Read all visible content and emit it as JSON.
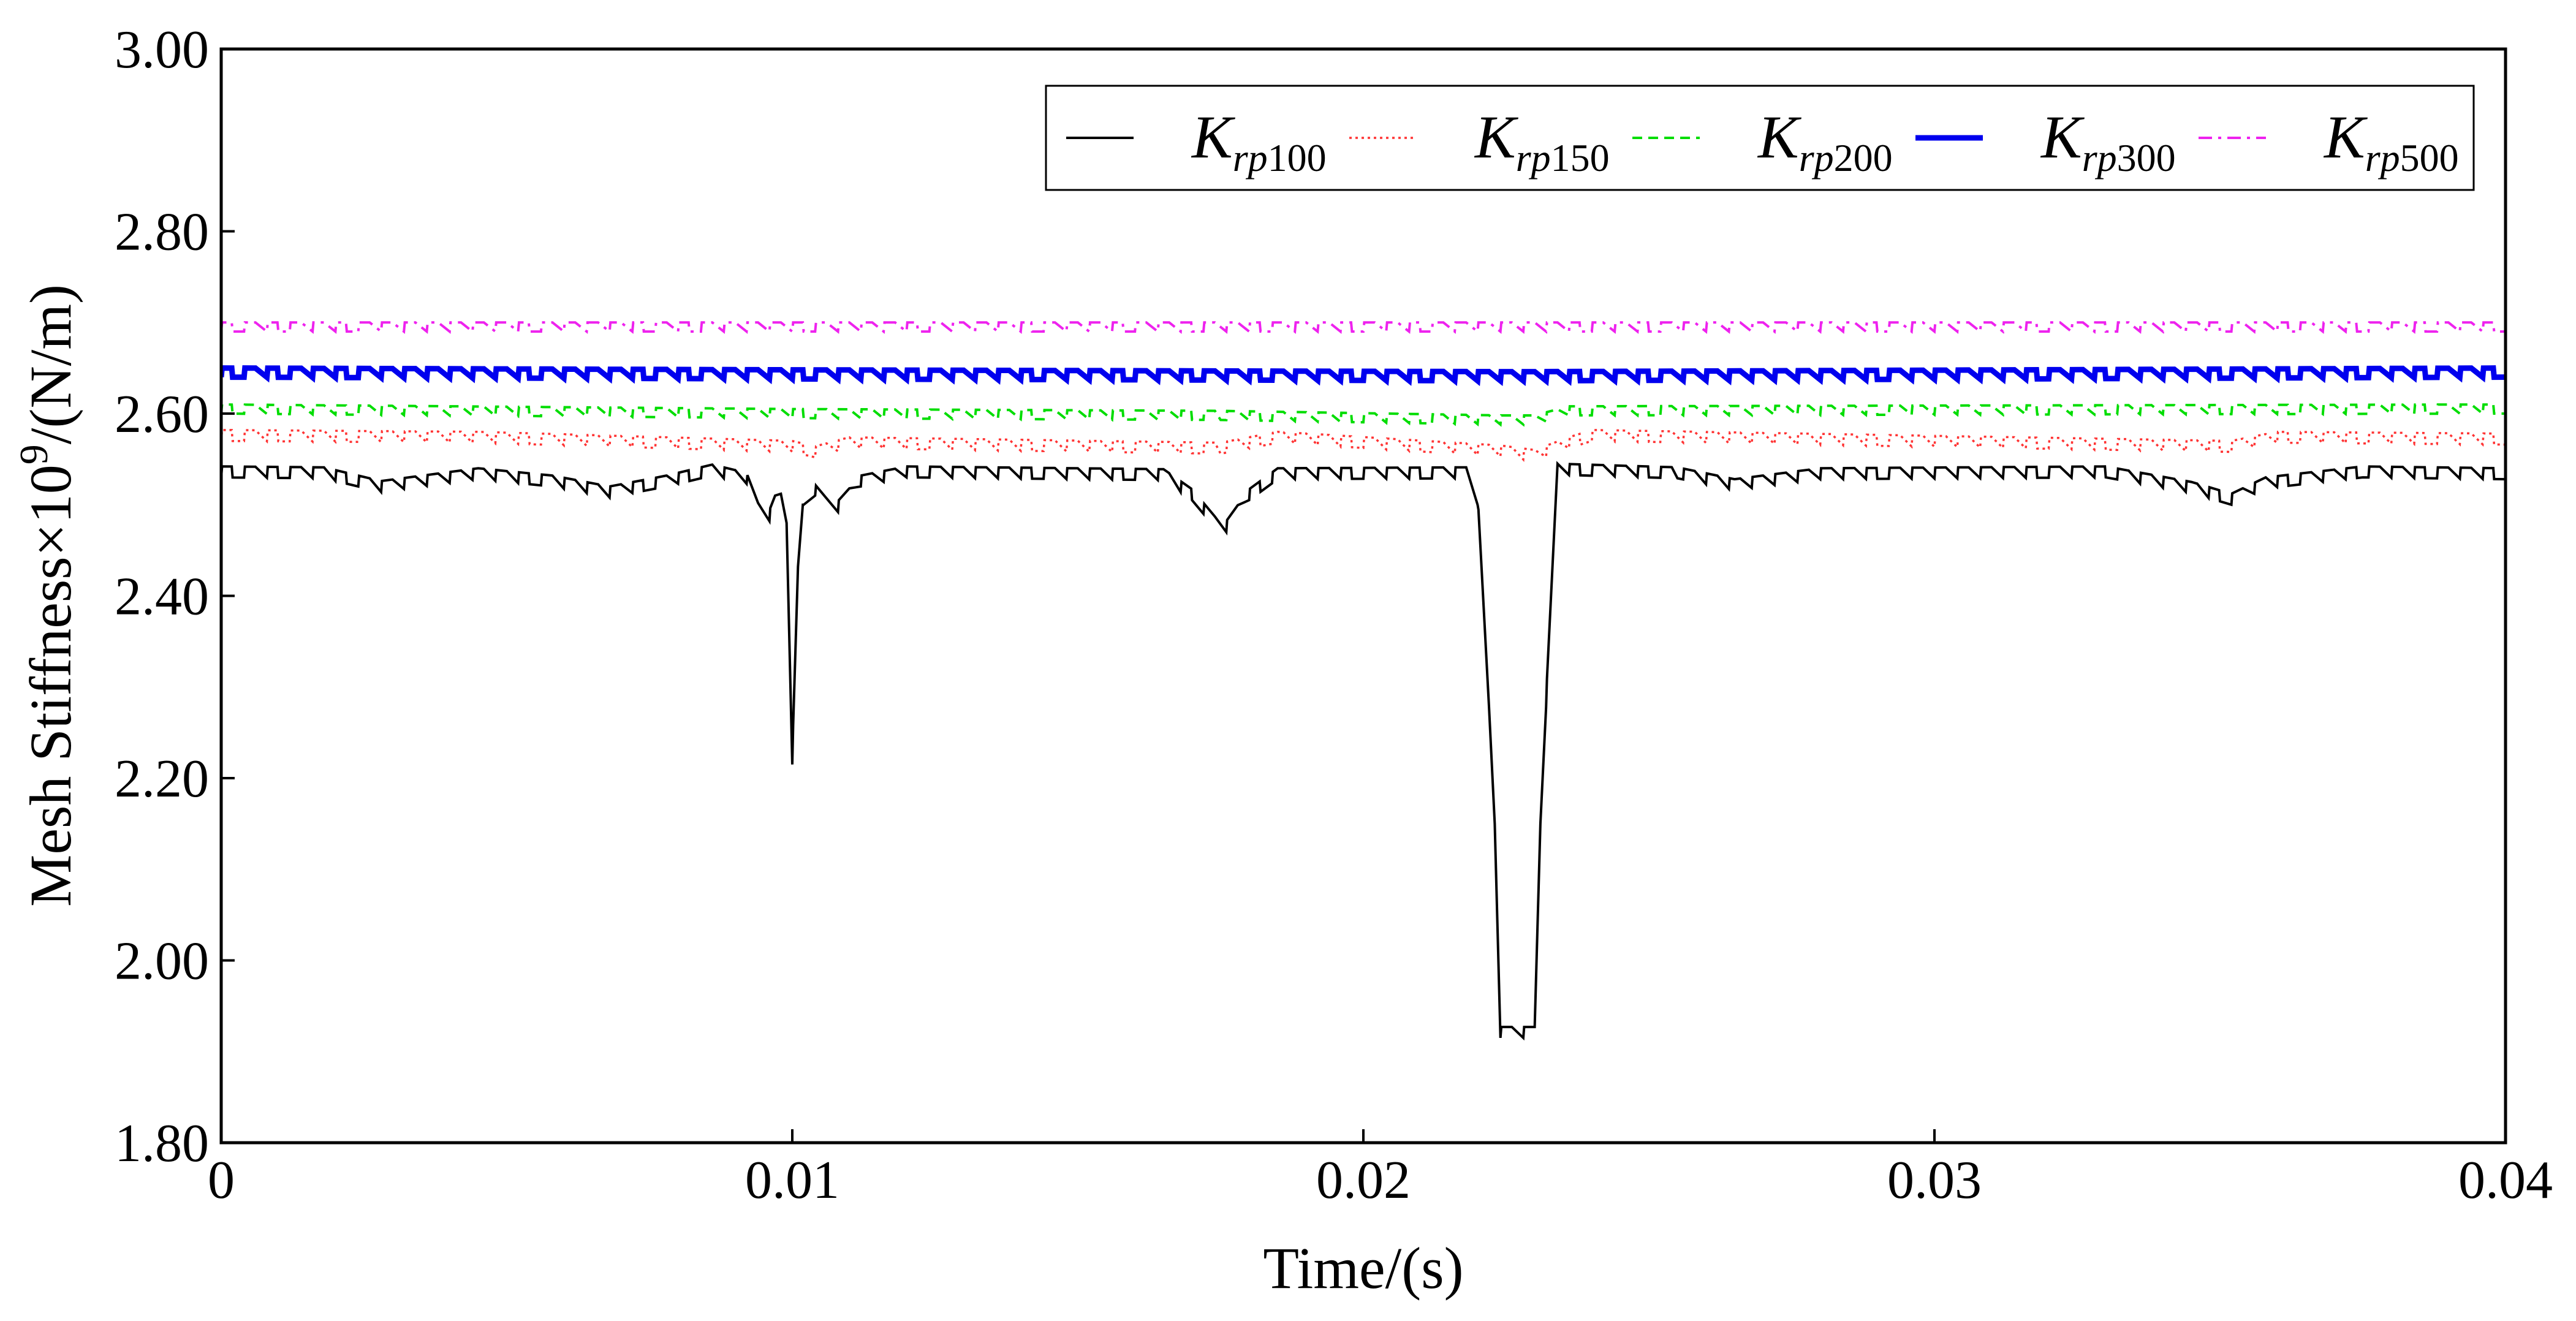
{
  "chart_data": {
    "type": "line",
    "title": "",
    "xlabel": "Time/(s)",
    "ylabel": {
      "prefix": "Mesh Stiffness×10",
      "exponent": "9",
      "suffix": "/(N/m)"
    },
    "xlim": [
      0,
      0.04
    ],
    "ylim": [
      1.8,
      3.0
    ],
    "xticks": [
      0,
      0.01,
      0.02,
      0.03,
      0.04
    ],
    "xtick_labels": [
      "0",
      "0.01",
      "0.02",
      "0.03",
      "0.04"
    ],
    "yticks": [
      1.8,
      2.0,
      2.2,
      2.4,
      2.6,
      2.8,
      3.0
    ],
    "ytick_labels": [
      "1.80",
      "2.00",
      "2.20",
      "2.40",
      "2.60",
      "2.80",
      "3.00"
    ],
    "grid": false,
    "legend_position": "top-right",
    "ripple": {
      "period": 0.0004,
      "duty": 0.5
    },
    "series": [
      {
        "name": "Krp100",
        "legend_main": "K",
        "legend_sub": "rp",
        "legend_num": "100",
        "color": "#000000",
        "style": "solid",
        "ripple_amplitude": 0.012,
        "points": [
          [
            0,
            2.53
          ],
          [
            0.0018,
            2.529
          ],
          [
            0.0028,
            2.514
          ],
          [
            0.0045,
            2.528
          ],
          [
            0.0058,
            2.52
          ],
          [
            0.0068,
            2.508
          ],
          [
            0.0078,
            2.52
          ],
          [
            0.0086,
            2.532
          ],
          [
            0.0092,
            2.523
          ],
          [
            0.0094,
            2.49
          ],
          [
            0.0096,
            2.482
          ],
          [
            0.0097,
            2.498
          ],
          [
            0.0098,
            2.5
          ],
          [
            0.0099,
            2.48
          ],
          [
            0.01,
            2.215
          ],
          [
            0.0101,
            2.42
          ],
          [
            0.0102,
            2.5
          ],
          [
            0.0104,
            2.51
          ],
          [
            0.0106,
            2.495
          ],
          [
            0.0108,
            2.492
          ],
          [
            0.0112,
            2.52
          ],
          [
            0.012,
            2.53
          ],
          [
            0.0165,
            2.527
          ],
          [
            0.017,
            2.505
          ],
          [
            0.0174,
            2.475
          ],
          [
            0.0176,
            2.47
          ],
          [
            0.018,
            2.505
          ],
          [
            0.0185,
            2.528
          ],
          [
            0.0218,
            2.529
          ],
          [
            0.022,
            2.5
          ],
          [
            0.0223,
            2.15
          ],
          [
            0.0224,
            1.915
          ],
          [
            0.023,
            1.915
          ],
          [
            0.0231,
            2.15
          ],
          [
            0.0234,
            2.533
          ],
          [
            0.0255,
            2.529
          ],
          [
            0.0265,
            2.516
          ],
          [
            0.028,
            2.528
          ],
          [
            0.033,
            2.53
          ],
          [
            0.0345,
            2.513
          ],
          [
            0.0352,
            2.5
          ],
          [
            0.0358,
            2.518
          ],
          [
            0.0375,
            2.53
          ],
          [
            0.04,
            2.528
          ]
        ]
      },
      {
        "name": "Krp150",
        "legend_main": "K",
        "legend_sub": "rp",
        "legend_num": "150",
        "color": "#ff3333",
        "style": "dotted",
        "ripple_amplitude": 0.012,
        "points": [
          [
            0,
            2.57
          ],
          [
            0.0045,
            2.568
          ],
          [
            0.01,
            2.558
          ],
          [
            0.0104,
            2.552
          ],
          [
            0.011,
            2.562
          ],
          [
            0.0175,
            2.556
          ],
          [
            0.0185,
            2.568
          ],
          [
            0.0224,
            2.553
          ],
          [
            0.023,
            2.548
          ],
          [
            0.0236,
            2.562
          ],
          [
            0.024,
            2.57
          ],
          [
            0.0352,
            2.558
          ],
          [
            0.036,
            2.568
          ],
          [
            0.04,
            2.566
          ]
        ]
      },
      {
        "name": "Krp200",
        "legend_main": "K",
        "legend_sub": "rp",
        "legend_num": "200",
        "color": "#00dd00",
        "style": "dashed",
        "ripple_amplitude": 0.01,
        "points": [
          [
            0,
            2.6
          ],
          [
            0.01,
            2.595
          ],
          [
            0.0175,
            2.593
          ],
          [
            0.0224,
            2.588
          ],
          [
            0.023,
            2.588
          ],
          [
            0.0236,
            2.598
          ],
          [
            0.04,
            2.6
          ]
        ]
      },
      {
        "name": "Krp300",
        "legend_main": "K",
        "legend_sub": "rp",
        "legend_num": "300",
        "color": "#0000ee",
        "style": "thick",
        "ripple_amplitude": 0.01,
        "points": [
          [
            0,
            2.64
          ],
          [
            0.01,
            2.638
          ],
          [
            0.0224,
            2.636
          ],
          [
            0.023,
            2.636
          ],
          [
            0.04,
            2.64
          ]
        ]
      },
      {
        "name": "Krp500",
        "legend_main": "K",
        "legend_sub": "rp",
        "legend_num": "500",
        "color": "#ee22ee",
        "style": "dashdot",
        "ripple_amplitude": 0.01,
        "points": [
          [
            0,
            2.69
          ],
          [
            0.04,
            2.69
          ]
        ]
      }
    ]
  }
}
